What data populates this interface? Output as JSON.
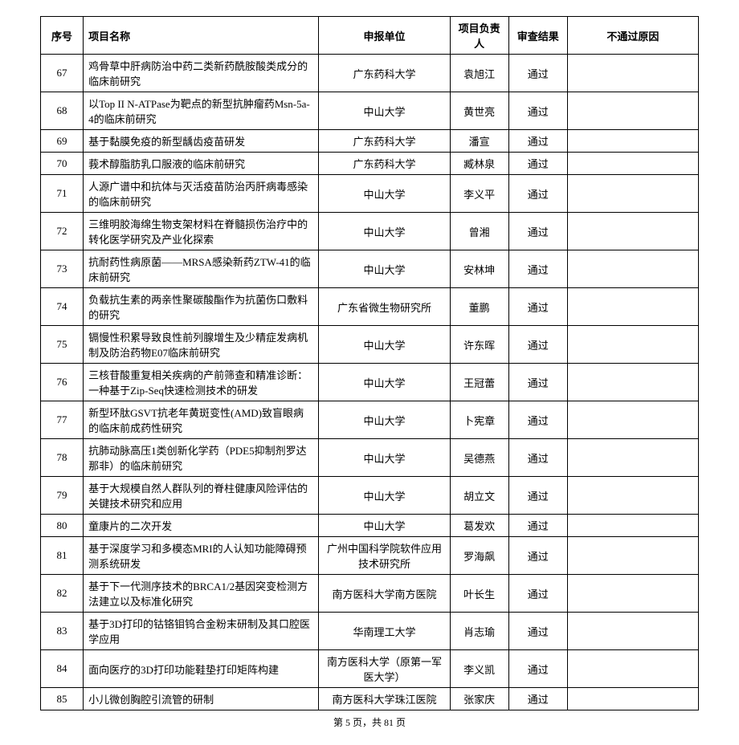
{
  "columns": [
    "序号",
    "项目名称",
    "申报单位",
    "项目负责人",
    "审查结果",
    "不通过原因"
  ],
  "rows": [
    {
      "seq": "67",
      "name": "鸡骨草中肝病防治中药二类新药酰胺酸类成分的临床前研究",
      "org": "广东药科大学",
      "leader": "袁旭江",
      "result": "通过",
      "reason": ""
    },
    {
      "seq": "68",
      "name": "以Top II N-ATPase为靶点的新型抗肿瘤药Msn-5a-4的临床前研究",
      "org": "中山大学",
      "leader": "黄世亮",
      "result": "通过",
      "reason": ""
    },
    {
      "seq": "69",
      "name": "基于黏膜免疫的新型龋齿疫苗研发",
      "org": "广东药科大学",
      "leader": "潘宣",
      "result": "通过",
      "reason": ""
    },
    {
      "seq": "70",
      "name": "莪术醇脂肪乳口服液的临床前研究",
      "org": "广东药科大学",
      "leader": "臧林泉",
      "result": "通过",
      "reason": ""
    },
    {
      "seq": "71",
      "name": "人源广谱中和抗体与灭活疫苗防治丙肝病毒感染的临床前研究",
      "org": "中山大学",
      "leader": "李义平",
      "result": "通过",
      "reason": ""
    },
    {
      "seq": "72",
      "name": "三维明胶海绵生物支架材料在脊髓损伤治疗中的转化医学研究及产业化探索",
      "org": "中山大学",
      "leader": "曾湘",
      "result": "通过",
      "reason": ""
    },
    {
      "seq": "73",
      "name": "抗耐药性病原菌——MRSA感染新药ZTW-41的临床前研究",
      "org": "中山大学",
      "leader": "安林坤",
      "result": "通过",
      "reason": ""
    },
    {
      "seq": "74",
      "name": "负载抗生素的两亲性聚碳酸酯作为抗菌伤口敷料的研究",
      "org": "广东省微生物研究所",
      "leader": "董鹏",
      "result": "通过",
      "reason": ""
    },
    {
      "seq": "75",
      "name": "镉慢性积累导致良性前列腺增生及少精症发病机制及防治药物E07临床前研究",
      "org": "中山大学",
      "leader": "许东晖",
      "result": "通过",
      "reason": ""
    },
    {
      "seq": "76",
      "name": "三核苷酸重复相关疾病的产前筛查和精准诊断：一种基于Zip-Seq快速检测技术的研发",
      "org": "中山大学",
      "leader": "王冠蕾",
      "result": "通过",
      "reason": ""
    },
    {
      "seq": "77",
      "name": "新型环肽GSVT抗老年黄斑变性(AMD)致盲眼病的临床前成药性研究",
      "org": "中山大学",
      "leader": "卜宪章",
      "result": "通过",
      "reason": ""
    },
    {
      "seq": "78",
      "name": "抗肺动脉高压1类创新化学药（PDE5抑制剂罗达那非）的临床前研究",
      "org": "中山大学",
      "leader": "吴德燕",
      "result": "通过",
      "reason": ""
    },
    {
      "seq": "79",
      "name": "基于大规模自然人群队列的脊柱健康风险评估的关键技术研究和应用",
      "org": "中山大学",
      "leader": "胡立文",
      "result": "通过",
      "reason": ""
    },
    {
      "seq": "80",
      "name": "童康片的二次开发",
      "org": "中山大学",
      "leader": "葛发欢",
      "result": "通过",
      "reason": ""
    },
    {
      "seq": "81",
      "name": "基于深度学习和多模态MRI的人认知功能障碍预测系统研发",
      "org": "广州中国科学院软件应用技术研究所",
      "leader": "罗海飙",
      "result": "通过",
      "reason": ""
    },
    {
      "seq": "82",
      "name": "基于下一代测序技术的BRCA1/2基因突变检测方法建立以及标准化研究",
      "org": "南方医科大学南方医院",
      "leader": "叶长生",
      "result": "通过",
      "reason": ""
    },
    {
      "seq": "83",
      "name": "基于3D打印的钴铬钼钨合金粉末研制及其口腔医学应用",
      "org": "华南理工大学",
      "leader": "肖志瑜",
      "result": "通过",
      "reason": ""
    },
    {
      "seq": "84",
      "name": "面向医疗的3D打印功能鞋垫打印矩阵构建",
      "org": "南方医科大学（原第一军医大学）",
      "leader": "李义凯",
      "result": "通过",
      "reason": ""
    },
    {
      "seq": "85",
      "name": "小儿微创胸腔引流管的研制",
      "org": "南方医科大学珠江医院",
      "leader": "张家庆",
      "result": "通过",
      "reason": ""
    }
  ],
  "pager": {
    "text_prefix": "第 ",
    "current": "5",
    "text_mid": " 页，共 ",
    "total": "81",
    "text_suffix": " 页"
  }
}
